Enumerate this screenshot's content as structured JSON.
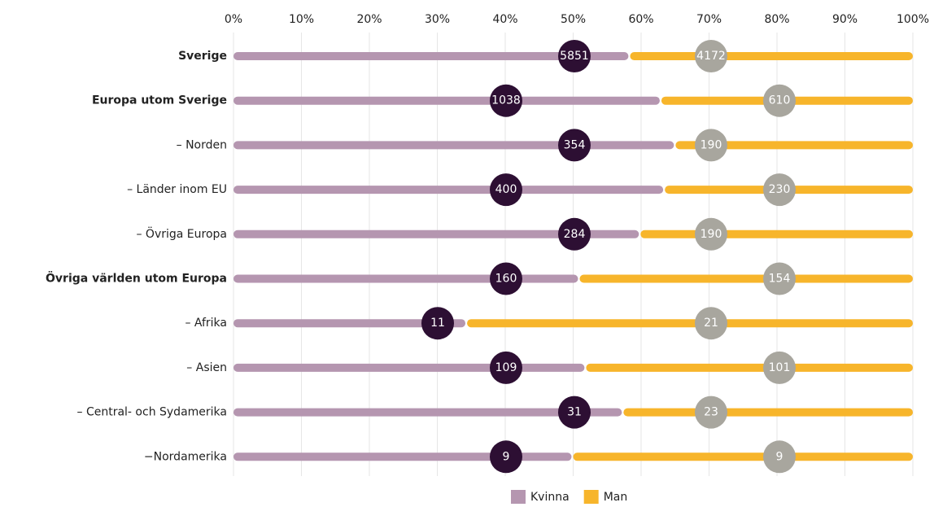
{
  "chart_data": {
    "type": "stacked-bar-100",
    "orientation": "horizontal",
    "categories": [
      "Sverige",
      "Europa utom Sverige",
      "– Norden",
      "– Länder inom EU",
      "– Övriga Europa",
      "Övriga världen utom Europa",
      "– Afrika",
      "– Asien",
      "– Central- och Sydamerika",
      "−Nordamerika"
    ],
    "series": [
      {
        "name": "Kvinna",
        "color": "#b596b0",
        "label_color": "#2d0f33",
        "values": [
          5851,
          1038,
          354,
          400,
          284,
          160,
          11,
          109,
          31,
          9
        ]
      },
      {
        "name": "Man",
        "color": "#f7b52b",
        "label_color": "#a8a69e",
        "values": [
          4172,
          610,
          190,
          230,
          190,
          154,
          21,
          101,
          23,
          9
        ]
      }
    ],
    "xlim": [
      0,
      100
    ],
    "xticks": [
      {
        "value": 0,
        "label": "0%"
      },
      {
        "value": 10,
        "label": "10%"
      },
      {
        "value": 20,
        "label": "20%"
      },
      {
        "value": 30,
        "label": "30%"
      },
      {
        "value": 40,
        "label": "40%"
      },
      {
        "value": 50,
        "label": "50%"
      },
      {
        "value": 60,
        "label": "60%"
      },
      {
        "value": 70,
        "label": "70%"
      },
      {
        "value": 80,
        "label": "80%"
      },
      {
        "value": 90,
        "label": "90%"
      },
      {
        "value": 100,
        "label": "100%"
      }
    ],
    "grid": true,
    "legend": "bottom"
  }
}
